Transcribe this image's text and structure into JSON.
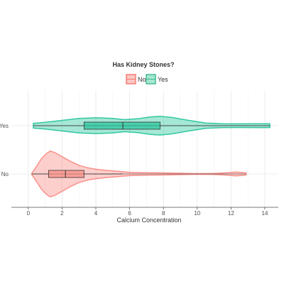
{
  "chart_data": {
    "type": "violin",
    "orientation": "horizontal",
    "legend": {
      "title": "Has Kidney Stones?",
      "position": "top",
      "entries": [
        "No",
        "Yes"
      ]
    },
    "xlabel": "Calcium Concentration",
    "ylabel": "",
    "xlim": [
      -1,
      14.8
    ],
    "x_ticks": [
      0,
      2,
      4,
      6,
      8,
      10,
      12,
      14
    ],
    "categories": [
      "No",
      "Yes"
    ],
    "grid": true,
    "series": [
      {
        "name": "No",
        "color": "#F8766D",
        "box": {
          "min": 0.21,
          "q1": 1.2,
          "median": 2.2,
          "q3": 3.3,
          "max": 5.6
        },
        "range": [
          0.21,
          12.9
        ],
        "density_profile": [
          [
            0.21,
            0.03
          ],
          [
            0.5,
            0.33
          ],
          [
            0.8,
            0.65
          ],
          [
            1.1,
            0.86
          ],
          [
            1.3,
            0.95
          ],
          [
            1.6,
            0.88
          ],
          [
            2.0,
            0.72
          ],
          [
            2.5,
            0.52
          ],
          [
            3.0,
            0.36
          ],
          [
            3.5,
            0.26
          ],
          [
            4.0,
            0.2
          ],
          [
            4.5,
            0.16
          ],
          [
            5.0,
            0.13
          ],
          [
            5.5,
            0.1
          ],
          [
            6.0,
            0.07
          ],
          [
            7.0,
            0.05
          ],
          [
            8.0,
            0.045
          ],
          [
            9.0,
            0.03
          ],
          [
            10.0,
            0.015
          ],
          [
            11.0,
            0.02
          ],
          [
            11.8,
            0.05
          ],
          [
            12.3,
            0.08
          ],
          [
            12.7,
            0.06
          ],
          [
            12.9,
            0.04
          ]
        ]
      },
      {
        "name": "Yes",
        "color": "#00BA8A",
        "box": {
          "min": 0.3,
          "q1": 3.3,
          "median": 5.6,
          "q3": 7.8,
          "max": 14.3
        },
        "range": [
          0.3,
          14.3
        ],
        "density_profile": [
          [
            0.3,
            0.1
          ],
          [
            1.0,
            0.14
          ],
          [
            2.0,
            0.22
          ],
          [
            3.0,
            0.3
          ],
          [
            4.0,
            0.33
          ],
          [
            5.0,
            0.3
          ],
          [
            5.7,
            0.25
          ],
          [
            6.5,
            0.29
          ],
          [
            7.2,
            0.36
          ],
          [
            7.8,
            0.39
          ],
          [
            8.5,
            0.34
          ],
          [
            9.5,
            0.22
          ],
          [
            10.5,
            0.11
          ],
          [
            11.5,
            0.08
          ],
          [
            12.5,
            0.075
          ],
          [
            13.5,
            0.08
          ],
          [
            14.3,
            0.08
          ]
        ]
      }
    ]
  }
}
